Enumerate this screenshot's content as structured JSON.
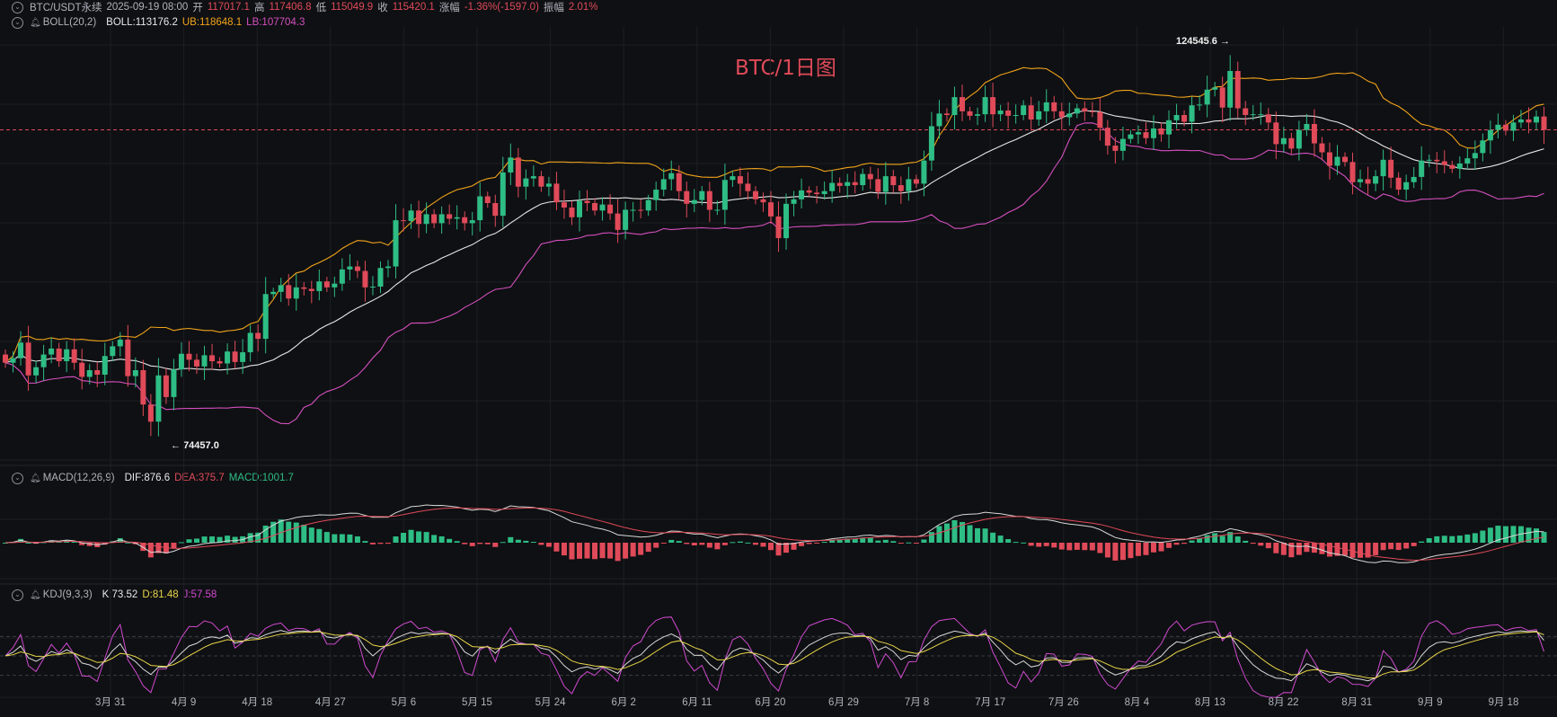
{
  "header": {
    "symbol": "BTC/USDT永续",
    "datetime": "2025-09-19 08:00",
    "open_label": "开",
    "open": "117017.1",
    "high_label": "高",
    "high": "117406.8",
    "low_label": "低",
    "low": "115049.9",
    "close_label": "收",
    "close": "115420.1",
    "change_label": "涨幅",
    "change": "-1.36%(-1597.0)",
    "amplitude_label": "振幅",
    "amplitude": "2.01%"
  },
  "boll": {
    "name": "BOLL(20,2)",
    "mid": "BOLL:113176.2",
    "ub": "UB:118648.1",
    "lb": "LB:107704.3"
  },
  "macd": {
    "name": "MACD(12,26,9)",
    "dif": "DIF:876.6",
    "dea": "DEA:375.7",
    "macd": "MACD:1001.7"
  },
  "kdj": {
    "name": "KDJ(9,3,3)",
    "k": "K:73.52",
    "d": "D:81.48",
    "j": "J:57.58"
  },
  "title": "BTC/1日图",
  "annotations": {
    "high": "124545.6",
    "low": "74457.0"
  },
  "colors": {
    "up": "#2ebd85",
    "down": "#e04a59",
    "mid": "#e6e6e6",
    "ub": "#f0a31b",
    "lb": "#d44fbf",
    "k": "#d8d8d8",
    "d": "#e8d44a",
    "j": "#d04ad0",
    "dif": "#d8d8d8",
    "dea": "#e04a59",
    "background": "#0f1013",
    "grid": "#1c1e23"
  },
  "chart_data": {
    "type": "candlestick",
    "x_ticks": [
      "3月 31",
      "4月 9",
      "4月 18",
      "4月 27",
      "5月 6",
      "5月 15",
      "5月 24",
      "6月 2",
      "6月 11",
      "6月 20",
      "6月 29",
      "7月 8",
      "7月 17",
      "7月 26",
      "8月 4",
      "8月 13",
      "8月 22",
      "8月 31",
      "9月 9",
      "9月 18"
    ],
    "y_range": [
      72000,
      128000
    ],
    "indicators": [
      "BOLL(20,2)",
      "MACD(12,26,9)",
      "KDJ(9,3,3)"
    ],
    "last_close": 115420.1,
    "series": [
      {
        "name": "close",
        "values": [
          84200,
          84800,
          86900,
          82500,
          83600,
          85300,
          86100,
          84400,
          86000,
          84200,
          82300,
          83200,
          82600,
          85100,
          86400,
          87300,
          82400,
          83200,
          78600,
          76300,
          82500,
          79600,
          83300,
          85400,
          84600,
          83700,
          85200,
          84400,
          84100,
          85700,
          84300,
          85600,
          88200,
          87400,
          93400,
          93700,
          94600,
          92800,
          94300,
          94100,
          93800,
          95100,
          94300,
          94800,
          96700,
          97100,
          96500,
          94300,
          94400,
          96900,
          97100,
          103300,
          103200,
          104600,
          102800,
          104100,
          102900,
          104100,
          103500,
          103700,
          102900,
          103300,
          106500,
          105600,
          103900,
          109700,
          111700,
          107800,
          108900,
          109200,
          107800,
          108200,
          105700,
          105000,
          103700,
          105900,
          105600,
          104600,
          105400,
          104200,
          102000,
          104700,
          104700,
          104600,
          106000,
          107400,
          108800,
          109600,
          107200,
          105500,
          106000,
          107200,
          104700,
          104700,
          108700,
          109200,
          108200,
          107200,
          106100,
          105700,
          103800,
          100900,
          105500,
          106100,
          107300,
          107000,
          106800,
          107200,
          108300,
          107900,
          108400,
          108000,
          109500,
          108800,
          107100,
          109200,
          108000,
          107200,
          108800,
          108200,
          111300,
          115900,
          117600,
          117400,
          119800,
          117900,
          117300,
          117500,
          119800,
          117500,
          118000,
          117300,
          117400,
          118700,
          116800,
          117900,
          119100,
          117900,
          117100,
          117600,
          118300,
          117900,
          117800,
          115700,
          113300,
          112600,
          114200,
          114800,
          115100,
          114300,
          115600,
          114800,
          116700,
          117400,
          116500,
          118700,
          118800,
          120800,
          121100,
          118400,
          123300,
          118300,
          117400,
          117500,
          117500,
          116400,
          113500,
          114300,
          112900,
          115400,
          116200,
          113600,
          112400,
          110600,
          111800,
          111100,
          108400,
          108800,
          108200,
          109200,
          111400,
          109000,
          107400,
          108400,
          109100,
          111300,
          111400,
          111200,
          110700,
          110200,
          110900,
          111600,
          112300,
          114000,
          115400,
          116100,
          115300,
          116400,
          116800,
          116400,
          117200,
          115400
        ]
      },
      {
        "name": "open",
        "values": [
          85300,
          84200,
          84800,
          86900,
          82500,
          83600,
          85300,
          86100,
          84400,
          86000,
          84200,
          82300,
          83200,
          82600,
          85100,
          86400,
          87300,
          82400,
          83200,
          78600,
          76300,
          82500,
          79600,
          83300,
          85400,
          84600,
          83700,
          85200,
          84400,
          84100,
          85700,
          84300,
          85600,
          88200,
          87400,
          93400,
          93700,
          94600,
          92800,
          94300,
          94100,
          93800,
          95100,
          94300,
          94800,
          96700,
          97100,
          96500,
          94300,
          94400,
          96900,
          97100,
          103300,
          103200,
          104600,
          102800,
          104100,
          102900,
          104100,
          103500,
          103700,
          102900,
          103300,
          106500,
          105600,
          103900,
          109700,
          111700,
          107800,
          108900,
          109200,
          107800,
          108200,
          105700,
          105000,
          103700,
          105900,
          105600,
          104600,
          105400,
          104200,
          102000,
          104700,
          104700,
          104600,
          106000,
          107400,
          108800,
          109600,
          107200,
          105500,
          106000,
          107200,
          104700,
          104700,
          108700,
          109200,
          108200,
          107200,
          106100,
          105700,
          103800,
          100900,
          105500,
          106100,
          107300,
          107000,
          106800,
          107200,
          108300,
          107900,
          108400,
          108000,
          109500,
          108800,
          107100,
          109200,
          108000,
          107200,
          108800,
          108200,
          111300,
          115900,
          117600,
          117400,
          119800,
          117900,
          117300,
          117500,
          119800,
          117500,
          118000,
          117300,
          117400,
          118700,
          116800,
          117900,
          119100,
          117900,
          117100,
          117600,
          118300,
          117900,
          117800,
          115700,
          113300,
          112600,
          114200,
          114800,
          115100,
          114300,
          115600,
          114800,
          116700,
          117400,
          116500,
          118700,
          118800,
          120800,
          121100,
          118400,
          123300,
          118300,
          117400,
          117500,
          117500,
          116400,
          113500,
          114300,
          112900,
          115400,
          116200,
          113600,
          112400,
          110600,
          111800,
          111100,
          108400,
          108800,
          108200,
          109200,
          111400,
          109000,
          107400,
          108400,
          109100,
          111300,
          111400,
          111200,
          110700,
          110200,
          110900,
          111600,
          112300,
          114000,
          115400,
          116100,
          115300,
          116400,
          116800,
          116400,
          117200
        ]
      }
    ]
  }
}
